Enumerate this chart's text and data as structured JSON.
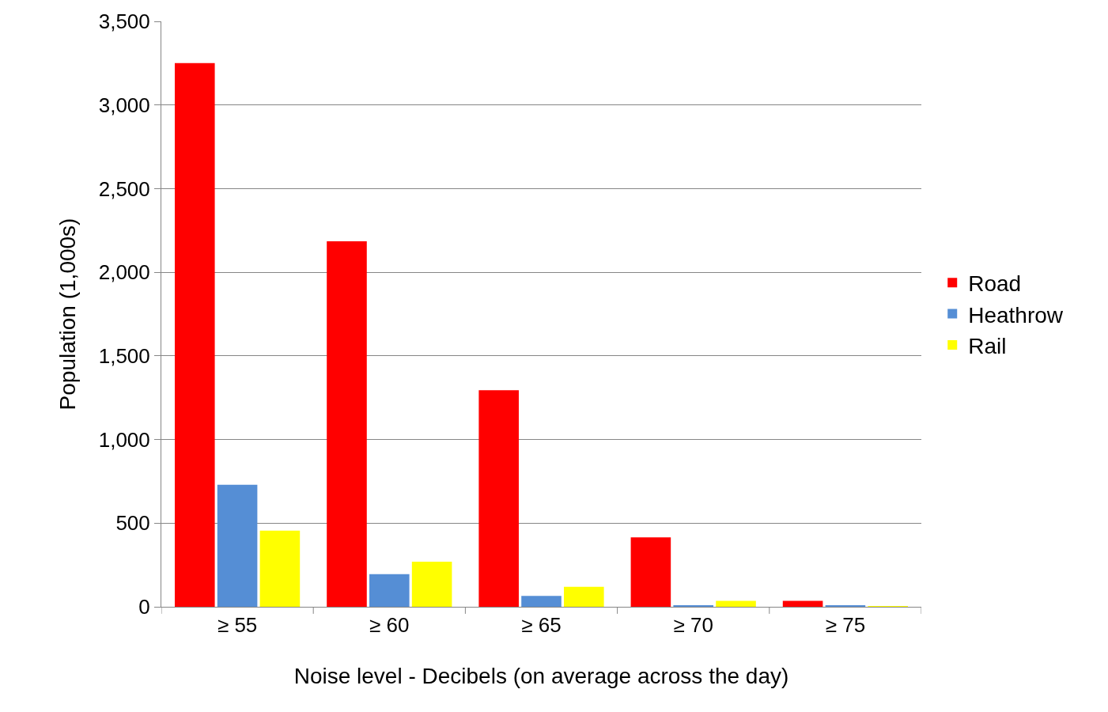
{
  "chart_data": {
    "type": "bar",
    "xlabel": "Noise level - Decibels (on average across the day)",
    "ylabel": "Population (1,000s)",
    "categories": [
      "≥ 55",
      "≥ 60",
      "≥ 65",
      "≥ 70",
      "≥ 75"
    ],
    "series": [
      {
        "name": "Road",
        "color": "#ff0000",
        "values": [
          3250,
          2185,
          1295,
          415,
          35
        ]
      },
      {
        "name": "Heathrow",
        "color": "#558ed5",
        "values": [
          730,
          195,
          65,
          10,
          10
        ]
      },
      {
        "name": "Rail",
        "color": "#ffff00",
        "values": [
          455,
          270,
          120,
          35,
          3
        ]
      }
    ],
    "ylim": [
      0,
      3500
    ],
    "yticks": [
      0,
      500,
      {
        "value": 1000,
        "label": "1,000"
      },
      {
        "value": 1500,
        "label": "1,500"
      },
      {
        "value": 2000,
        "label": "2,000"
      },
      {
        "value": 2500,
        "label": "2,500"
      },
      {
        "value": 3000,
        "label": "3,000"
      },
      {
        "value": 3500,
        "label": "3,500"
      }
    ],
    "grid": "y",
    "legend": "right"
  }
}
